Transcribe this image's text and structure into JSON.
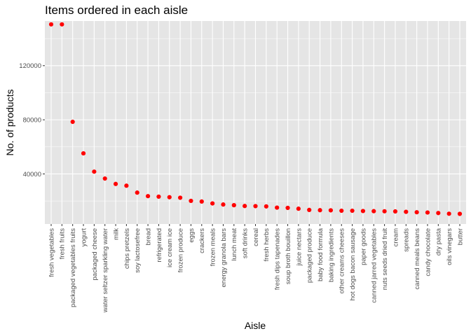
{
  "chart_data": {
    "type": "scatter",
    "title": "Items ordered in each aisle",
    "xlabel": "Aisle",
    "ylabel": "No. of products",
    "y_ticks": [
      40000,
      80000,
      120000
    ],
    "y_tick_labels": [
      "40000",
      "80000",
      "120000"
    ],
    "ylim": [
      3000,
      153000
    ],
    "grid": true,
    "point_color": "#ff0000",
    "panel_color": "#e5e5e5",
    "grid_color": "#ffffff",
    "categories": [
      "fresh vegetables",
      "fresh fruits",
      "packaged vegetables fruits",
      "yogurt",
      "packaged cheese",
      "water seltzer sparkling water",
      "milk",
      "chips pretzels",
      "soy lactosefree",
      "bread",
      "refrigerated",
      "ice cream ice",
      "frozen produce",
      "eggs",
      "crackers",
      "frozen meals",
      "energy granola bars",
      "lunch meat",
      "soft drinks",
      "cereal",
      "fresh herbs",
      "fresh dips tapenades",
      "soup broth bouillon",
      "juice nectars",
      "packaged produce",
      "baby food formula",
      "baking ingredients",
      "other creams cheeses",
      "hot dogs bacon sausage",
      "paper goods",
      "canned jarred vegetables",
      "nuts seeds dried fruit",
      "cream",
      "spreads",
      "canned meals beans",
      "candy chocolate",
      "dry pasta",
      "oils vinegars",
      "butter"
    ],
    "values": [
      150500,
      150500,
      78500,
      55200,
      41700,
      36600,
      32600,
      31300,
      26200,
      23600,
      23200,
      22800,
      22400,
      20100,
      19600,
      18200,
      17400,
      16900,
      16300,
      16200,
      16000,
      15100,
      14900,
      14300,
      13400,
      13200,
      13100,
      12800,
      12800,
      12600,
      12500,
      12400,
      12300,
      12000,
      11700,
      11500,
      11100,
      10600,
      10500
    ]
  }
}
